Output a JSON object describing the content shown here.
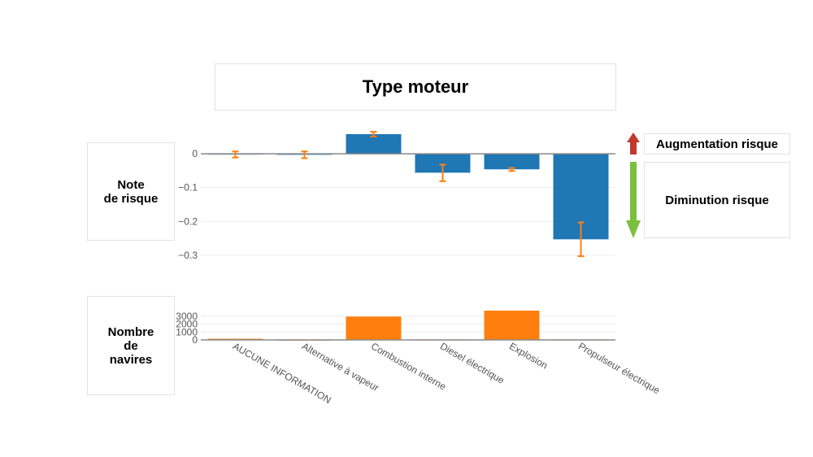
{
  "title": "Type moteur",
  "labels": {
    "score": "Note\nde risque",
    "count": "Nombre\nde\nnavires",
    "increase": "Augmentation risque",
    "decrease": "Diminution risque"
  },
  "colors": {
    "score_bar": "#1f77b4",
    "count_bar": "#ff7f0e",
    "error_bar": "#ff7f0e",
    "arrow_up": "#c0392b",
    "arrow_down": "#7cbf3f"
  },
  "chart_data": [
    {
      "type": "bar",
      "name": "score",
      "categories": [
        "AUCUNE INFORMATION",
        "Alternative à vapeur",
        "Combustion interne",
        "Diesel électrique",
        "Explosion",
        "Propulseur électrique"
      ],
      "values": [
        -0.002,
        -0.003,
        0.058,
        -0.056,
        -0.046,
        -0.253
      ],
      "error_low": [
        -0.011,
        -0.013,
        0.051,
        -0.081,
        -0.051,
        -0.303
      ],
      "error_high": [
        0.007,
        0.007,
        0.065,
        -0.032,
        -0.042,
        -0.203
      ],
      "yticks": [
        "0",
        "−0.1",
        "−0.2",
        "−0.3"
      ],
      "ytick_values": [
        0,
        -0.1,
        -0.2,
        -0.3
      ],
      "ylim": [
        -0.31,
        0.07
      ],
      "grid": true
    },
    {
      "type": "bar",
      "name": "count",
      "categories": [
        "AUCUNE INFORMATION",
        "Alternative à vapeur",
        "Combustion interne",
        "Diesel électrique",
        "Explosion",
        "Propulseur électrique"
      ],
      "values": [
        150,
        20,
        2950,
        40,
        3700,
        30
      ],
      "yticks": [
        "0",
        "1000",
        "2000",
        "3000"
      ],
      "ytick_values": [
        0,
        1000,
        2000,
        3000
      ],
      "ylim": [
        0,
        3700
      ],
      "grid": true
    }
  ]
}
